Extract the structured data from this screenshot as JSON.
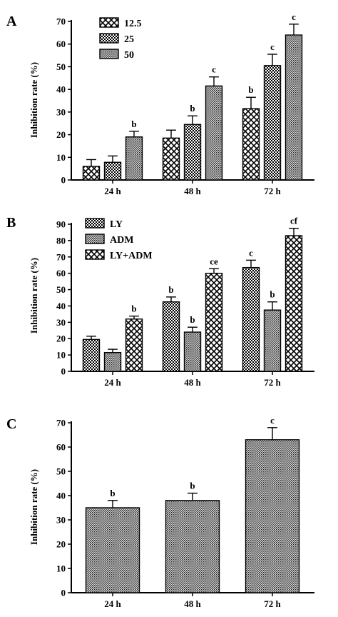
{
  "chart_data": [
    {
      "panel_label": "A",
      "type": "bar",
      "categories": [
        "24 h",
        "48 h",
        "72 h"
      ],
      "series": [
        {
          "name": "12.5",
          "values": [
            6,
            18.5,
            31.5
          ],
          "errors": [
            3,
            3.5,
            5
          ],
          "sig": [
            "",
            "",
            "b"
          ],
          "pattern": "crosshatch"
        },
        {
          "name": "25",
          "values": [
            7.8,
            24.5,
            50.5
          ],
          "errors": [
            2.8,
            3.8,
            5
          ],
          "sig": [
            "",
            "b",
            "c"
          ],
          "pattern": "checker"
        },
        {
          "name": "50",
          "values": [
            19,
            41.5,
            64
          ],
          "errors": [
            2.5,
            4,
            4.8
          ],
          "sig": [
            "b",
            "c",
            "c"
          ],
          "pattern": "dense"
        }
      ],
      "ylabel": "Inhibition rate (%)",
      "ylim": [
        0,
        70
      ],
      "yticks": [
        0,
        10,
        20,
        30,
        40,
        50,
        60,
        70
      ],
      "legend": "top-left"
    },
    {
      "panel_label": "B",
      "type": "bar",
      "categories": [
        "24 h",
        "48 h",
        "72 h"
      ],
      "series": [
        {
          "name": "LY",
          "values": [
            19.5,
            42.5,
            63.5
          ],
          "errors": [
            2,
            3,
            4.5
          ],
          "sig": [
            "",
            "b",
            "c"
          ],
          "pattern": "checker"
        },
        {
          "name": "ADM",
          "values": [
            11.5,
            24,
            37.5
          ],
          "errors": [
            2,
            3,
            5
          ],
          "sig": [
            "",
            "b",
            "b"
          ],
          "pattern": "dense"
        },
        {
          "name": "LY+ADM",
          "values": [
            32,
            60,
            83
          ],
          "errors": [
            1.8,
            2.8,
            4.5
          ],
          "sig": [
            "b",
            "ce",
            "cf"
          ],
          "pattern": "crosshatch"
        }
      ],
      "ylabel": "Inhibition rate (%)",
      "ylim": [
        0,
        90
      ],
      "yticks": [
        0,
        10,
        20,
        30,
        40,
        50,
        60,
        70,
        80,
        90
      ],
      "legend": "top-left"
    },
    {
      "panel_label": "C",
      "type": "bar",
      "categories": [
        "24 h",
        "48 h",
        "72 h"
      ],
      "series": [
        {
          "values": [
            35,
            38,
            63
          ],
          "errors": [
            3,
            3,
            5
          ],
          "sig": [
            "b",
            "b",
            "c"
          ],
          "pattern": "dense"
        }
      ],
      "ylabel": "Inhibition rate (%)",
      "ylim": [
        0,
        70
      ],
      "yticks": [
        0,
        10,
        20,
        30,
        40,
        50,
        60,
        70
      ],
      "legend": "none"
    }
  ]
}
